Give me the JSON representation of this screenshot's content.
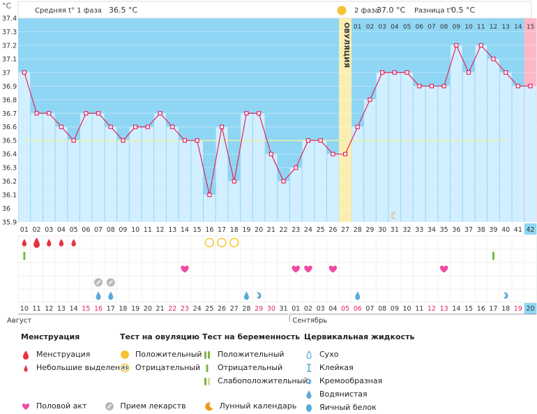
{
  "header": {
    "unit": "°C",
    "phase1_label": "Средняя t° 1 фаза",
    "phase1_value": "36.5 °C",
    "phase2_label": "2 фаза",
    "phase2_value": "37.0 °C",
    "diff_label": "Разница t°",
    "diff_value": "0.5 °C",
    "ovulation_label": "ОВУЛЯЦИЯ"
  },
  "colors": {
    "phase1_bg": "#8fd6f4",
    "phase2_bg": "#8fd6f4",
    "bar_fill": "#d2efff",
    "ovulation_col": "#fbeeb0",
    "line": "#e0245e",
    "coverline": "#e8f0a8",
    "pink_col": "#ffb7c8",
    "weekend": "#e0245e"
  },
  "chart_data": {
    "type": "area",
    "xlabel": "",
    "ylabel": "°C",
    "ylim": [
      35.9,
      37.4
    ],
    "y_ticks": [
      "35.9",
      "36",
      "36.1",
      "36.2",
      "36.3",
      "36.4",
      "36.5",
      "36.6",
      "36.7",
      "36.8",
      "36.9",
      "37",
      "37.1",
      "37.2",
      "37.3",
      "37.4"
    ],
    "cycle_days": [
      "01",
      "02",
      "03",
      "04",
      "05",
      "06",
      "07",
      "08",
      "09",
      "10",
      "11",
      "12",
      "13",
      "14",
      "15",
      "16",
      "17",
      "18",
      "19",
      "20",
      "21",
      "22",
      "23",
      "24",
      "25",
      "26",
      "27",
      "28",
      "29",
      "30",
      "31",
      "32",
      "33",
      "34",
      "35",
      "36",
      "37",
      "38",
      "39",
      "40",
      "41",
      "42"
    ],
    "phase2_day_labels": [
      "01",
      "02",
      "03",
      "04",
      "05",
      "06",
      "07",
      "08",
      "09",
      "10",
      "11",
      "12",
      "13",
      "14",
      "15"
    ],
    "dates": [
      "10",
      "11",
      "12",
      "13",
      "14",
      "15",
      "16",
      "17",
      "18",
      "19",
      "20",
      "21",
      "22",
      "23",
      "24",
      "25",
      "26",
      "27",
      "28",
      "29",
      "30",
      "31",
      "01",
      "02",
      "03",
      "04",
      "05",
      "06",
      "07",
      "08",
      "09",
      "10",
      "11",
      "12",
      "13",
      "14",
      "15",
      "16",
      "17",
      "18",
      "19",
      "20"
    ],
    "weekend_dates_idx": [
      5,
      6,
      12,
      13,
      19,
      20,
      26,
      27,
      33,
      34,
      40
    ],
    "months": [
      "Август",
      "Сентябрь"
    ],
    "series": [
      {
        "values": [
          37.0,
          36.7,
          36.7,
          36.6,
          36.5,
          36.7,
          36.7,
          36.6,
          36.5,
          36.6,
          36.6,
          36.7,
          36.6,
          36.5,
          36.5,
          36.1,
          36.6,
          36.2,
          36.7,
          36.7,
          36.4,
          36.2,
          36.3,
          36.5,
          36.5,
          36.4,
          36.4,
          36.6,
          36.8,
          37.0,
          37.0,
          37.0,
          36.9,
          36.9,
          36.9,
          37.2,
          37.0,
          37.2,
          37.1,
          37.0,
          36.9,
          36.9
        ]
      }
    ],
    "coverline": 36.5,
    "ovulation_day": 27,
    "moon_day": 31,
    "markers": {
      "menstruation_big": [
        2
      ],
      "menstruation_small": [
        1,
        3,
        4,
        5
      ],
      "ovulation_test_negative": [
        16,
        17,
        18
      ],
      "pregnancy_test_negative": [
        1,
        39
      ],
      "intercourse": [
        14,
        23,
        24,
        26,
        35
      ],
      "medication": [
        7,
        8
      ],
      "fluid_watery": [
        7,
        8,
        19,
        28
      ],
      "fluid_creamy": [
        20,
        40
      ]
    }
  },
  "legend": {
    "menstruation": {
      "title": "Менструация",
      "items": [
        "Менструация",
        "Небольшие выделения"
      ]
    },
    "ovulation_test": {
      "title": "Тест на овуляцию",
      "items": [
        "Положительный",
        "Отрицательный"
      ]
    },
    "pregnancy_test": {
      "title": "Тест на беременность",
      "items": [
        "Положительный",
        "Отрицательный",
        "Слабоположительный"
      ]
    },
    "fluid": {
      "title": "Цервикальная жидкость",
      "items": [
        "Сухо",
        "Клейкая",
        "Кремообразная",
        "Водянистая",
        "Яичный белок"
      ]
    },
    "bottom": [
      "Половой акт",
      "Прием лекарств",
      "Лунный календарь"
    ]
  }
}
